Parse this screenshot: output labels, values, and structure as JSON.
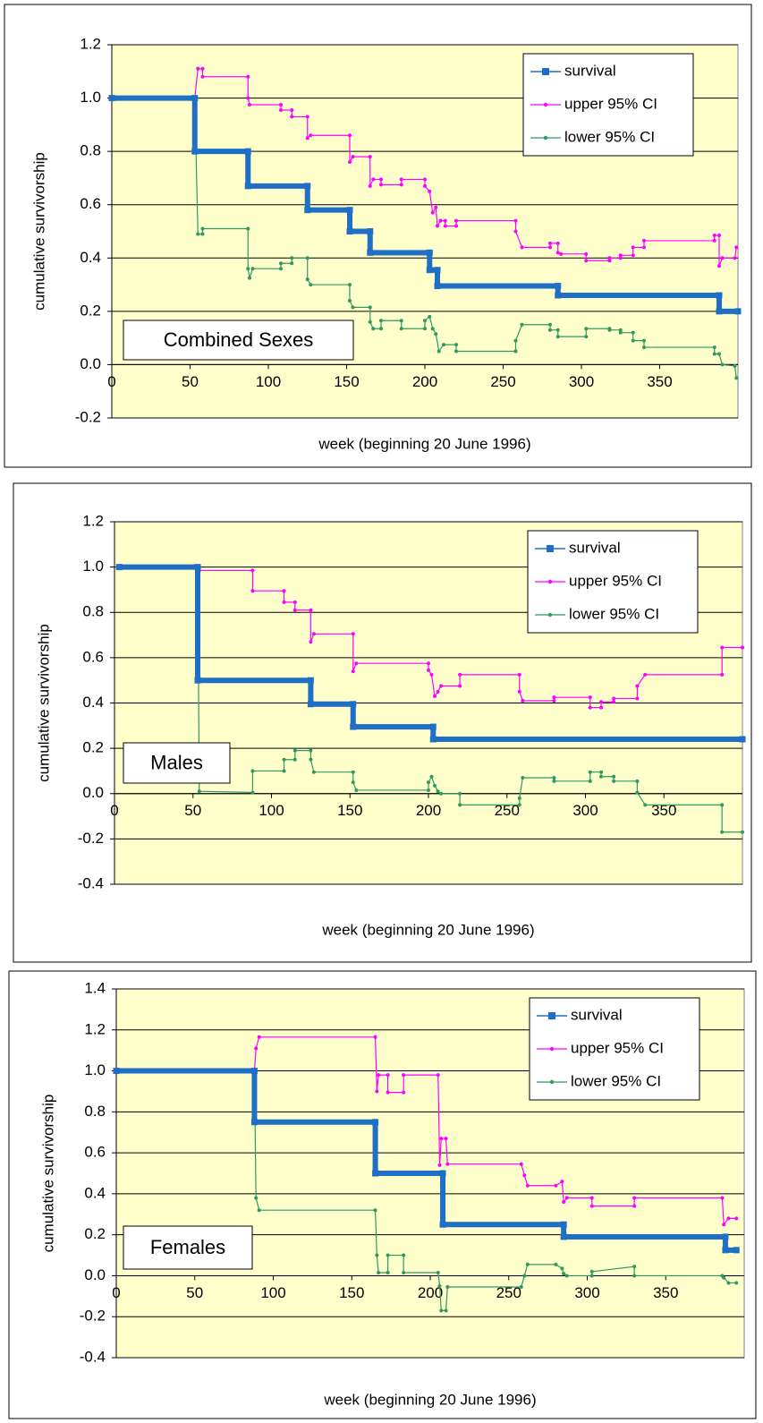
{
  "chart_data": [
    {
      "type": "line",
      "annotation": "Combined Sexes",
      "y_label": "cumulative survivorship",
      "x_label": "week (beginning 20 June 1996)",
      "xlim": [
        0,
        400
      ],
      "xticks": [
        0,
        50,
        100,
        150,
        200,
        250,
        300,
        350
      ],
      "ylim": [
        -0.2,
        1.2
      ],
      "yticks": [
        -0.2,
        {
          "value": 0,
          "label": "0.0"
        },
        0.2,
        0.4,
        0.6,
        0.8,
        {
          "value": 1,
          "label": "1.0"
        },
        1.2
      ],
      "grid": true,
      "legend": "upper right",
      "series": [
        {
          "name": "survival",
          "color": "#1f6fc6",
          "x": [
            0,
            53,
            53,
            87,
            87,
            125,
            125,
            152,
            152,
            165,
            165,
            203,
            203,
            208,
            208,
            285,
            285,
            388,
            388,
            400
          ],
          "values": [
            1,
            1,
            0.8,
            0.8,
            0.67,
            0.67,
            0.58,
            0.58,
            0.5,
            0.5,
            0.42,
            0.42,
            0.355,
            0.355,
            0.295,
            0.295,
            0.26,
            0.26,
            0.2,
            0.2
          ]
        },
        {
          "name": "upper 95% CI",
          "color": "#ff00ff",
          "x": [
            0,
            53,
            55,
            58,
            58,
            87,
            87,
            88,
            108,
            108,
            115,
            115,
            125,
            125,
            127,
            152,
            152,
            154,
            165,
            165,
            167,
            172,
            172,
            185,
            185,
            200,
            200,
            203,
            205,
            207,
            208,
            210,
            213,
            213,
            220,
            220,
            258,
            258,
            262,
            280,
            280,
            285,
            285,
            287,
            303,
            303,
            318,
            318,
            325,
            325,
            333,
            333,
            340,
            340,
            385,
            385,
            388,
            388,
            390,
            398,
            399
          ],
          "values": [
            1,
            1,
            1.11,
            1.11,
            1.08,
            1.08,
            1,
            0.975,
            0.975,
            0.955,
            0.955,
            0.93,
            0.93,
            0.85,
            0.86,
            0.86,
            0.76,
            0.78,
            0.78,
            0.67,
            0.695,
            0.695,
            0.675,
            0.675,
            0.695,
            0.695,
            0.67,
            0.65,
            0.57,
            0.59,
            0.52,
            0.54,
            0.54,
            0.52,
            0.52,
            0.54,
            0.54,
            0.5,
            0.44,
            0.44,
            0.455,
            0.455,
            0.42,
            0.415,
            0.415,
            0.39,
            0.39,
            0.4,
            0.4,
            0.41,
            0.41,
            0.44,
            0.44,
            0.465,
            0.465,
            0.485,
            0.485,
            0.37,
            0.4,
            0.4,
            0.44
          ]
        },
        {
          "name": "lower 95% CI",
          "color": "#2e9960",
          "x": [
            0,
            53,
            55,
            58,
            58,
            87,
            87,
            88,
            90,
            108,
            108,
            115,
            115,
            125,
            125,
            127,
            152,
            152,
            154,
            165,
            165,
            167,
            172,
            172,
            185,
            185,
            200,
            200,
            203,
            205,
            207,
            209,
            212,
            220,
            220,
            258,
            258,
            262,
            280,
            280,
            285,
            285,
            303,
            303,
            318,
            318,
            325,
            325,
            333,
            333,
            340,
            340,
            385,
            385,
            388,
            390,
            398,
            399
          ],
          "values": [
            1,
            1,
            0.49,
            0.49,
            0.51,
            0.51,
            0.36,
            0.325,
            0.36,
            0.36,
            0.38,
            0.38,
            0.4,
            0.4,
            0.32,
            0.3,
            0.3,
            0.24,
            0.215,
            0.215,
            0.16,
            0.135,
            0.135,
            0.165,
            0.165,
            0.135,
            0.135,
            0.165,
            0.18,
            0.135,
            0.115,
            0.05,
            0.075,
            0.075,
            0.05,
            0.05,
            0.09,
            0.15,
            0.15,
            0.13,
            0.13,
            0.105,
            0.105,
            0.135,
            0.135,
            0.13,
            0.13,
            0.12,
            0.12,
            0.09,
            0.09,
            0.065,
            0.065,
            0.04,
            0.04,
            0,
            -0.005,
            -0.05
          ]
        }
      ]
    },
    {
      "type": "line",
      "annotation": "Males",
      "y_label": "cumulative survivorship",
      "x_label": "week (beginning 20 June 1996)",
      "xlim": [
        0,
        400
      ],
      "xticks": [
        0,
        50,
        100,
        150,
        200,
        250,
        300,
        350
      ],
      "ylim": [
        -0.4,
        1.2
      ],
      "yticks": [
        -0.4,
        -0.2,
        {
          "value": 0,
          "label": "0.0"
        },
        0.2,
        0.4,
        0.6,
        0.8,
        {
          "value": 1,
          "label": "1.0"
        },
        1.2
      ],
      "grid": true,
      "legend": "upper right",
      "series": [
        {
          "name": "survival",
          "color": "#1f6fc6",
          "x": [
            3,
            53,
            53,
            125,
            125,
            152,
            152,
            203,
            203,
            400
          ],
          "values": [
            1,
            1,
            0.5,
            0.5,
            0.395,
            0.395,
            0.295,
            0.295,
            0.24,
            0.24
          ]
        },
        {
          "name": "upper 95% CI",
          "color": "#ff00ff",
          "x": [
            3,
            53,
            54,
            88,
            88,
            108,
            108,
            115,
            115,
            125,
            125,
            127,
            152,
            152,
            154,
            200,
            200,
            202,
            204,
            206,
            208,
            220,
            220,
            258,
            258,
            260,
            280,
            280,
            303,
            303,
            310,
            310,
            318,
            318,
            333,
            333,
            338,
            387,
            387,
            400
          ],
          "values": [
            1,
            1,
            0.985,
            0.985,
            0.895,
            0.895,
            0.845,
            0.845,
            0.81,
            0.81,
            0.67,
            0.705,
            0.705,
            0.54,
            0.575,
            0.575,
            0.545,
            0.525,
            0.43,
            0.45,
            0.475,
            0.475,
            0.525,
            0.525,
            0.45,
            0.41,
            0.41,
            0.425,
            0.425,
            0.38,
            0.38,
            0.405,
            0.405,
            0.42,
            0.42,
            0.475,
            0.525,
            0.525,
            0.645,
            0.645
          ]
        },
        {
          "name": "lower 95% CI",
          "color": "#2e9960",
          "x": [
            3,
            53,
            54,
            88,
            88,
            108,
            108,
            115,
            115,
            125,
            125,
            127,
            152,
            152,
            154,
            200,
            200,
            202,
            204,
            206,
            208,
            220,
            220,
            258,
            258,
            260,
            280,
            280,
            303,
            303,
            310,
            310,
            318,
            318,
            333,
            333,
            338,
            387,
            387,
            400
          ],
          "values": [
            1,
            1,
            0.01,
            0.005,
            0.1,
            0.1,
            0.15,
            0.15,
            0.19,
            0.19,
            0.15,
            0.095,
            0.095,
            0.05,
            0.015,
            0.015,
            0.05,
            0.075,
            0.035,
            0.01,
            0,
            0,
            -0.05,
            -0.05,
            -0.02,
            0.07,
            0.07,
            0.055,
            0.055,
            0.095,
            0.095,
            0.075,
            0.075,
            0.055,
            0.055,
            0.005,
            -0.05,
            -0.05,
            -0.17,
            -0.17
          ]
        }
      ]
    },
    {
      "type": "line",
      "annotation": "Females",
      "y_label": "cumulative survivorship",
      "x_label": "week (beginning 20 June 1996)",
      "xlim": [
        0,
        400
      ],
      "xticks": [
        0,
        50,
        100,
        150,
        200,
        250,
        300,
        350
      ],
      "ylim": [
        -0.4,
        1.4
      ],
      "yticks": [
        -0.4,
        -0.2,
        {
          "value": 0,
          "label": "0.0"
        },
        0.2,
        0.4,
        0.6,
        0.8,
        {
          "value": 1,
          "label": "1.0"
        },
        1.2,
        1.4
      ],
      "grid": true,
      "legend": "upper right",
      "series": [
        {
          "name": "survival",
          "color": "#1f6fc6",
          "x": [
            0,
            88,
            88,
            165,
            165,
            208,
            208,
            285,
            285,
            388,
            388,
            395
          ],
          "values": [
            1,
            1,
            0.75,
            0.75,
            0.5,
            0.5,
            0.25,
            0.25,
            0.19,
            0.19,
            0.125,
            0.125
          ]
        },
        {
          "name": "upper 95% CI",
          "color": "#ff00ff",
          "x": [
            0,
            88,
            89,
            91,
            165,
            166,
            167,
            173,
            173,
            183,
            183,
            205,
            206,
            207,
            210,
            211,
            258,
            260,
            262,
            280,
            284,
            285,
            287,
            303,
            303,
            330,
            330,
            386,
            387,
            390,
            395
          ],
          "values": [
            1,
            1,
            1.11,
            1.165,
            1.165,
            0.9,
            0.98,
            0.98,
            0.895,
            0.895,
            0.98,
            0.98,
            0.54,
            0.67,
            0.67,
            0.545,
            0.545,
            0.49,
            0.44,
            0.44,
            0.46,
            0.36,
            0.38,
            0.38,
            0.34,
            0.34,
            0.38,
            0.38,
            0.25,
            0.28,
            0.28
          ]
        },
        {
          "name": "lower 95% CI",
          "color": "#2e9960",
          "x": [
            0,
            88,
            89,
            91,
            165,
            166,
            167,
            173,
            173,
            183,
            183,
            205,
            206,
            207,
            210,
            211,
            258,
            260,
            262,
            280,
            284,
            285,
            287,
            303,
            303,
            330,
            330,
            386,
            387,
            390,
            395
          ],
          "values": [
            1,
            1,
            0.38,
            0.32,
            0.32,
            0.1,
            0.015,
            0.015,
            0.1,
            0.1,
            0.015,
            0.015,
            -0.05,
            -0.17,
            -0.17,
            -0.055,
            -0.055,
            0,
            0.055,
            0.055,
            0.035,
            0.01,
            0,
            0,
            0.02,
            0.045,
            0,
            0,
            -0.01,
            -0.035,
            -0.035
          ]
        }
      ]
    }
  ]
}
